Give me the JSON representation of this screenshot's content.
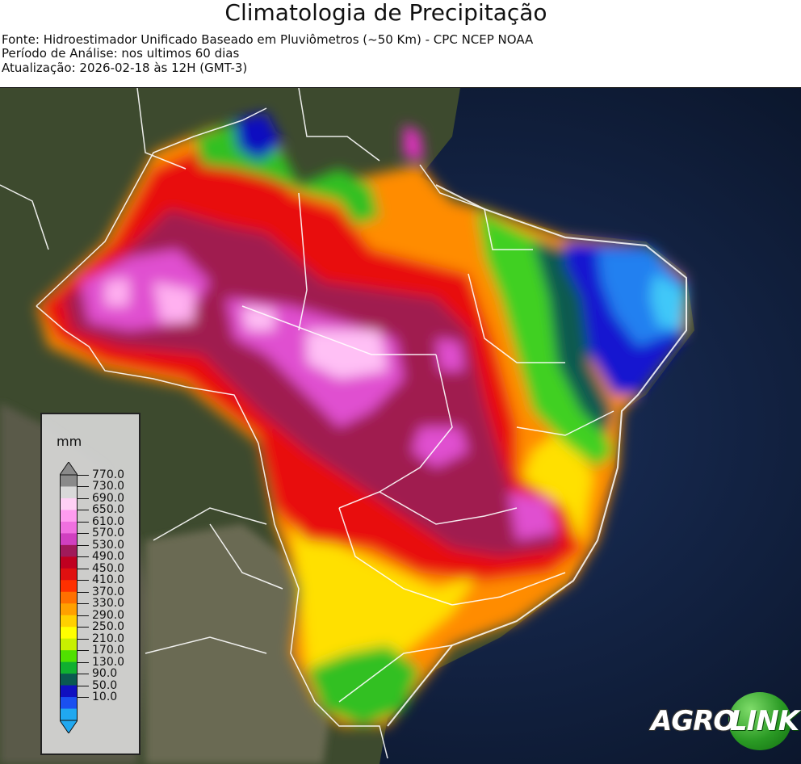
{
  "title": "Climatologia de Precipitação",
  "source_line": "Fonte: Hidroestimador Unificado Baseado em Pluviômetros (~50 Km) - CPC NCEP NOAA",
  "period_line": "Período de Análise: nos ultimos 60 dias",
  "update_line": "Atualização: 2026-02-18 às 12H (GMT-3)",
  "legend": {
    "unit": "mm",
    "ticks": [
      "770.0",
      "730.0",
      "690.0",
      "650.0",
      "610.0",
      "570.0",
      "530.0",
      "490.0",
      "450.0",
      "410.0",
      "370.0",
      "330.0",
      "290.0",
      "250.0",
      "210.0",
      "170.0",
      "130.0",
      "90.0",
      "50.0",
      "10.0"
    ],
    "colors": [
      "#8a8a8a",
      "#d9d9d9",
      "#ffd0f5",
      "#ff9cf0",
      "#f070e0",
      "#d040c0",
      "#a01a5a",
      "#c00020",
      "#e01010",
      "#ff3000",
      "#ff7000",
      "#ffa000",
      "#ffd000",
      "#ffff00",
      "#c8f000",
      "#50e000",
      "#10b030",
      "#0a5a50",
      "#1010c0",
      "#1a50f0",
      "#20a8f0"
    ]
  },
  "logo": {
    "part1": "AGRO",
    "part2": "LINK"
  },
  "icons": {
    "colorbar_top": "triangle-up-icon",
    "colorbar_bottom": "triangle-down-icon"
  }
}
